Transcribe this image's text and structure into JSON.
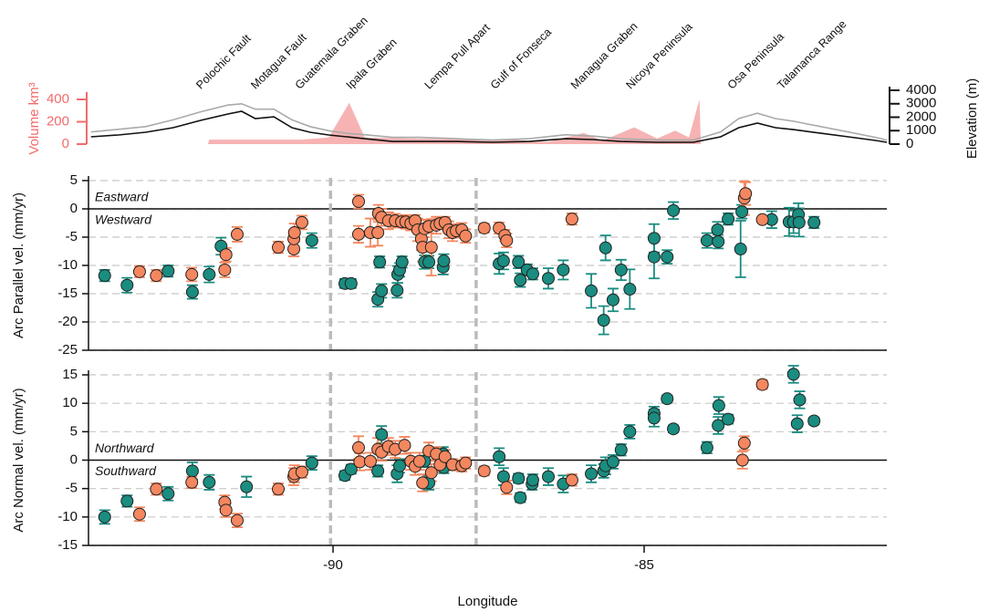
{
  "chart_data": [
    {
      "type": "area",
      "xlim": [
        -93.93,
        -81.1
      ],
      "ylabel": "Volume km³",
      "ylim": [
        0,
        400
      ],
      "yticks": [
        0,
        200,
        400
      ],
      "ycolor": "#f26b6b",
      "y2label": "Elevation (m)",
      "y2lim": [
        0,
        4000
      ],
      "y2ticks": [
        0,
        1000,
        2000,
        3000,
        4000
      ],
      "places": [
        {
          "text": "Polochic Fault",
          "x": -92.16
        },
        {
          "text": "Motagua Fault",
          "x": -91.28
        },
        {
          "text": "Guatemala Graben",
          "x": -90.57
        },
        {
          "text": "Ipala Graben",
          "x": -89.75
        },
        {
          "text": "Lempa Pull Apart",
          "x": -88.49
        },
        {
          "text": "Gulf of Fonseca",
          "x": -87.43
        },
        {
          "text": "Managua Graben",
          "x": -86.14
        },
        {
          "text": "Nicoya Peninsula",
          "x": -85.25
        },
        {
          "text": "Osa Peninsula",
          "x": -83.62
        },
        {
          "text": "Talamanca Range",
          "x": -82.82
        }
      ],
      "series": [
        {
          "color": "#f7b3b3",
          "fill": true,
          "x": [
            -92.01,
            -91.99,
            -90.51,
            -90.07,
            -89.74,
            -89.49,
            -87.73,
            -87.14,
            -86.55,
            -85.97,
            -85.67,
            -85.16,
            -84.79,
            -84.5,
            -84.28,
            -84.11,
            -84.09
          ],
          "values": [
            0,
            40,
            40,
            60,
            370,
            60,
            40,
            40,
            20,
            100,
            30,
            150,
            50,
            120,
            60,
            400,
            0
          ]
        },
        {
          "color": "#aaaaaa",
          "axis": "y2",
          "x": [
            -93.89,
            -93.45,
            -93.01,
            -92.57,
            -92.13,
            -91.69,
            -91.47,
            -91.25,
            -90.95,
            -90.66,
            -90.37,
            -90.07,
            -89.78,
            -89.49,
            -89.05,
            -88.61,
            -88.02,
            -87.43,
            -86.85,
            -86.26,
            -85.82,
            -85.38,
            -84.79,
            -84.21,
            -83.77,
            -83.48,
            -83.18,
            -82.89,
            -82.6,
            -82.16,
            -81.72,
            -81.28,
            -81.1
          ],
          "values": [
            900,
            1100,
            1300,
            1800,
            2400,
            2900,
            3000,
            2600,
            2600,
            1800,
            1300,
            1000,
            800,
            700,
            500,
            500,
            400,
            300,
            400,
            700,
            600,
            400,
            300,
            300,
            900,
            1900,
            2300,
            1900,
            1700,
            1300,
            900,
            500,
            300
          ]
        },
        {
          "color": "#111111",
          "axis": "y2",
          "x": [
            -93.89,
            -93.45,
            -93.01,
            -92.57,
            -92.13,
            -91.69,
            -91.47,
            -91.25,
            -90.95,
            -90.66,
            -90.37,
            -90.07,
            -89.78,
            -89.49,
            -89.05,
            -88.61,
            -88.02,
            -87.43,
            -86.85,
            -86.26,
            -85.82,
            -85.38,
            -84.79,
            -84.21,
            -83.77,
            -83.48,
            -83.18,
            -82.89,
            -82.6,
            -82.16,
            -81.72,
            -81.28,
            -81.1
          ],
          "values": [
            540,
            680,
            880,
            1220,
            1760,
            2240,
            2440,
            1900,
            2030,
            1220,
            880,
            680,
            540,
            400,
            200,
            200,
            200,
            135,
            200,
            400,
            340,
            200,
            135,
            135,
            540,
            1220,
            1560,
            1220,
            1080,
            810,
            540,
            270,
            135
          ]
        }
      ]
    },
    {
      "type": "scatter",
      "xlim": [
        -93.93,
        -81.1
      ],
      "ylabel": "Arc Parallel vel. (mm/yr)",
      "ylim": [
        -25,
        5
      ],
      "yticks": [
        -25,
        -20,
        -15,
        -10,
        -5,
        0,
        5
      ],
      "grid": true,
      "zero_line": true,
      "vlines": [
        -90.04,
        -87.7
      ],
      "annotations": [
        "Eastward",
        "Westward"
      ],
      "series": [
        {
          "color": "#1a8c80",
          "x": [
            -93.67,
            -93.31,
            -92.65,
            -92.26,
            -91.99,
            -91.8,
            -90.34,
            -89.81,
            -89.71,
            -89.28,
            -89.22,
            -89.25,
            -88.97,
            -88.96,
            -88.93,
            -88.89,
            -88.53,
            -88.46,
            -88.23,
            -88.22,
            -87.33,
            -87.26,
            -87.02,
            -86.99,
            -86.88,
            -86.79,
            -86.54,
            -86.3,
            -85.85,
            -85.65,
            -85.62,
            -85.5,
            -85.37,
            -85.23,
            -84.84,
            -84.84,
            -84.63,
            -84.53,
            -83.99,
            -83.81,
            -83.82,
            -83.65,
            -83.45,
            -83.43,
            -82.95,
            -82.67,
            -82.6,
            -82.52,
            -82.51,
            -82.27
          ],
          "values": [
            -11.8,
            -13.5,
            -11,
            -14.7,
            -11.6,
            -6.6,
            -5.6,
            -13.2,
            -13.2,
            -16,
            -14.5,
            -9.4,
            -14.4,
            -11.6,
            -10.8,
            -9.4,
            -9.4,
            -9.4,
            -10.3,
            -9.2,
            -9.7,
            -9.2,
            -9.4,
            -12.6,
            -10.8,
            -11.5,
            -12.3,
            -10.8,
            -14.5,
            -19.7,
            -6.9,
            -16.1,
            -10.8,
            -14.2,
            -5.2,
            -8.5,
            -8.5,
            -0.3,
            -5.6,
            -5.8,
            -3.7,
            -1.8,
            -7.1,
            -0.5,
            -1.9,
            -2.3,
            -2.3,
            -1,
            -2.4,
            -2.4
          ],
          "errors": [
            1,
            1.3,
            1,
            1.2,
            1.4,
            1.5,
            1.3,
            0.8,
            0.8,
            1.3,
            1.2,
            1,
            1.3,
            1.5,
            1.2,
            1,
            1.2,
            1.1,
            1.3,
            1.2,
            1.8,
            1.5,
            1.1,
            1.2,
            1,
            1,
            1.8,
            1.7,
            3,
            2.5,
            2.2,
            2,
            1.8,
            3.5,
            2.5,
            3.8,
            1.2,
            1.5,
            1.3,
            1.2,
            1.4,
            1,
            5,
            1.2,
            1.5,
            2.5,
            2,
            2,
            2.5,
            1
          ]
        },
        {
          "color": "#f4875f",
          "x": [
            -93.11,
            -92.84,
            -92.27,
            -91.74,
            -91.72,
            -91.54,
            -90.88,
            -90.63,
            -90.63,
            -90.62,
            -90.5,
            -89.59,
            -89.59,
            -89.4,
            -89.28,
            -89.27,
            -89.22,
            -89.11,
            -89.0,
            -88.9,
            -88.83,
            -88.75,
            -88.68,
            -88.64,
            -88.58,
            -88.56,
            -88.53,
            -88.46,
            -88.42,
            -88.34,
            -88.28,
            -88.2,
            -88.14,
            -88.08,
            -88.02,
            -87.93,
            -87.87,
            -87.57,
            -87.33,
            -87.24,
            -87.21,
            -86.16,
            -83.39,
            -83.37,
            -83.1
          ],
          "values": [
            -11.1,
            -11.8,
            -11.6,
            -10.8,
            -8.1,
            -4.5,
            -6.8,
            -7.1,
            -5.3,
            -4.2,
            -2.4,
            1.3,
            -4.5,
            -4.2,
            -4.2,
            -0.8,
            -1.5,
            -2.1,
            -2.1,
            -2.3,
            -2.3,
            -2.6,
            -2.1,
            -3.7,
            -5.3,
            -6.8,
            -3.5,
            -3.1,
            -6.8,
            -2.9,
            -2.6,
            -2.4,
            -3.7,
            -4.2,
            -3.9,
            -3.7,
            -4.8,
            -3.4,
            -3.4,
            -4.7,
            -5.6,
            -1.8,
            1.9,
            2.7,
            -1.9
          ],
          "errors": [
            1,
            1,
            1.2,
            1.3,
            1.2,
            1.3,
            1,
            1.3,
            1.5,
            1.6,
            1.2,
            1.2,
            1.5,
            2.5,
            2.3,
            1.5,
            1.5,
            1.5,
            1.2,
            1,
            1.2,
            1.2,
            1,
            2,
            2,
            2.5,
            1.5,
            1.2,
            5,
            1.5,
            1,
            1,
            1.5,
            1.5,
            1.2,
            1.2,
            1.2,
            0.8,
            1,
            1,
            1.2,
            1,
            3,
            2,
            0.5
          ]
        }
      ]
    },
    {
      "type": "scatter",
      "xlim": [
        -93.93,
        -81.1
      ],
      "xticks": [
        -90,
        -85
      ],
      "xlabel": "Longitude",
      "ylabel": "Arc Normal vel. (mm/yr)",
      "ylim": [
        -15,
        15
      ],
      "yticks": [
        -15,
        -10,
        -5,
        0,
        5,
        10,
        15
      ],
      "grid": true,
      "zero_line": true,
      "vlines": [
        -90.04,
        -87.7
      ],
      "annotations": [
        "Northward",
        "Southward"
      ],
      "series": [
        {
          "color": "#1a8c80",
          "x": [
            -93.67,
            -93.31,
            -92.65,
            -92.26,
            -91.99,
            -91.39,
            -90.34,
            -89.81,
            -89.71,
            -89.28,
            -89.22,
            -88.97,
            -88.93,
            -88.53,
            -88.46,
            -88.23,
            -88.22,
            -87.33,
            -87.26,
            -87.02,
            -86.99,
            -86.8,
            -86.79,
            -86.54,
            -86.3,
            -85.85,
            -85.65,
            -85.62,
            -85.5,
            -85.37,
            -85.23,
            -84.84,
            -84.84,
            -84.63,
            -84.53,
            -83.99,
            -83.81,
            -83.8,
            -83.65,
            -82.6,
            -82.5,
            -82.54,
            -82.27
          ],
          "values": [
            -10,
            -7.2,
            -5.9,
            -1.9,
            -3.9,
            -4.7,
            -0.5,
            -2.7,
            -1.6,
            -1.9,
            4.5,
            -2.4,
            -1,
            -0.2,
            -4,
            1.1,
            -1.3,
            0.6,
            -2.9,
            -3.2,
            -6.6,
            -4.2,
            -3.5,
            -2.9,
            -4.2,
            -2.4,
            -1.9,
            -1,
            -0.3,
            1.8,
            5,
            8.2,
            7.4,
            10.8,
            5.5,
            2.2,
            6.1,
            9.6,
            7.2,
            15.1,
            10.6,
            6.4,
            6.9
          ],
          "errors": [
            1.2,
            1,
            1.2,
            1.5,
            1.3,
            1.8,
            1.2,
            0.8,
            0.8,
            1,
            1.5,
            1.5,
            1.2,
            1,
            1.2,
            1.2,
            1,
            1.5,
            1.5,
            0.8,
            0.8,
            1,
            1,
            1.5,
            1.5,
            1.5,
            1.2,
            1.5,
            1.2,
            1,
            1.2,
            1.2,
            1.5,
            0.6,
            0.6,
            1,
            1.5,
            1.5,
            0.8,
            1.5,
            1.5,
            1.5,
            0.6
          ]
        },
        {
          "color": "#f4875f",
          "x": [
            -93.11,
            -92.84,
            -92.27,
            -91.74,
            -91.72,
            -91.54,
            -90.88,
            -90.63,
            -90.62,
            -90.5,
            -89.59,
            -89.57,
            -89.4,
            -89.28,
            -89.22,
            -89.11,
            -89.0,
            -88.85,
            -88.75,
            -88.68,
            -88.61,
            -88.56,
            -88.46,
            -88.42,
            -88.34,
            -88.28,
            -88.2,
            -88.08,
            -87.93,
            -87.87,
            -87.57,
            -87.21,
            -86.16,
            -83.39,
            -83.42,
            -83.1
          ],
          "values": [
            -9.5,
            -5.1,
            -3.9,
            -7.4,
            -8.8,
            -10.6,
            -5.1,
            -2.9,
            -2.4,
            -2.1,
            2.2,
            -0.3,
            -0.2,
            1.9,
            1.4,
            2.4,
            1.9,
            2.6,
            -0.2,
            -1.1,
            -0.2,
            -4,
            1.6,
            -2.2,
            1.1,
            -0.8,
            0.6,
            -0.8,
            -1,
            -0.5,
            -1.9,
            -4.8,
            -3.5,
            3,
            0,
            13.3
          ],
          "errors": [
            1.2,
            1,
            1,
            1.2,
            1.2,
            1.2,
            1,
            1.5,
            1.5,
            1,
            2,
            1.5,
            1.5,
            2,
            1.5,
            1.5,
            1.5,
            1.5,
            1.5,
            1.5,
            1.5,
            1.5,
            1.5,
            1.5,
            1.2,
            1.2,
            1.2,
            1,
            1,
            1,
            0.8,
            1.2,
            1,
            1.2,
            1.5,
            0.8
          ]
        }
      ]
    }
  ]
}
